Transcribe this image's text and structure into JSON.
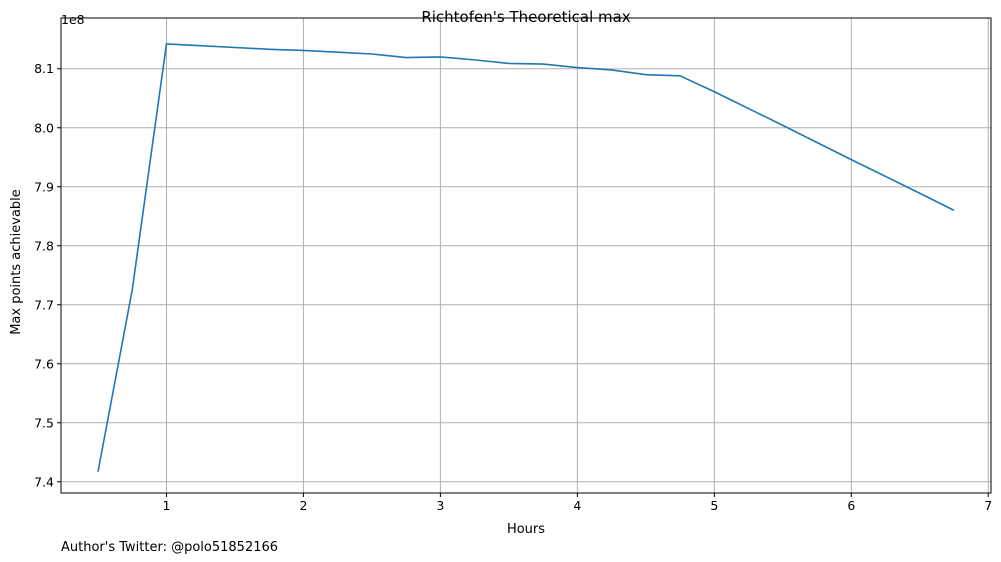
{
  "chart_data": {
    "type": "line",
    "title": "Richtofen's Theoretical max",
    "xlabel": "Hours",
    "ylabel": "Max points achievable",
    "y_offset_label": "1e8",
    "xlim": [
      0.23,
      7.02
    ],
    "ylim": [
      7.381,
      8.186
    ],
    "xticks": [
      1,
      2,
      3,
      4,
      5,
      6,
      7
    ],
    "xtick_labels": [
      "1",
      "2",
      "3",
      "4",
      "5",
      "6",
      "7"
    ],
    "yticks": [
      7.4,
      7.5,
      7.6,
      7.7,
      7.8,
      7.9,
      8.0,
      8.1
    ],
    "ytick_labels": [
      "7.4",
      "7.5",
      "7.6",
      "7.7",
      "7.8",
      "7.9",
      "8.0",
      "8.1"
    ],
    "grid": true,
    "line_color": "#1f77b4",
    "series": [
      {
        "x": [
          0.5,
          0.75,
          1.0,
          1.25,
          1.5,
          1.75,
          2.0,
          2.25,
          2.5,
          2.75,
          3.0,
          3.25,
          3.5,
          3.75,
          4.0,
          4.25,
          4.5,
          4.75,
          5.0,
          5.5,
          6.0,
          6.5,
          6.75
        ],
        "y": [
          7.417,
          7.725,
          8.142,
          8.139,
          8.136,
          8.133,
          8.131,
          8.128,
          8.125,
          8.119,
          8.12,
          8.115,
          8.109,
          8.108,
          8.102,
          8.098,
          8.09,
          8.088,
          8.061,
          8.004,
          7.946,
          7.889,
          7.86
        ]
      }
    ]
  },
  "footnote": "Author's Twitter: @polo51852166"
}
